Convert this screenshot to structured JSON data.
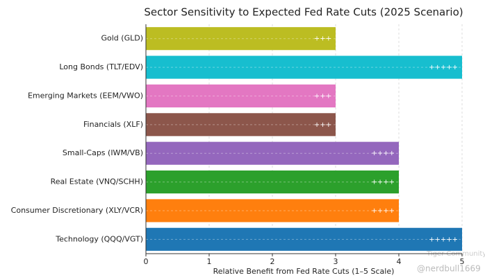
{
  "chart_data": {
    "type": "bar",
    "orientation": "horizontal",
    "title": "Sector Sensitivity to Expected Fed Rate Cuts (2025 Scenario)",
    "x_label": "Relative Benefit from Fed Rate Cuts (1–5 Scale)",
    "categories": [
      "Gold (GLD)",
      "Long Bonds (TLT/EDV)",
      "Emerging Markets (EEM/VWO)",
      "Financials (XLF)",
      "Small-Caps (IWM/VB)",
      "Real Estate (VNQ/SCHH)",
      "Consumer Discretionary (XLY/VCR)",
      "Technology (QQQ/VGT)"
    ],
    "values": [
      3,
      5,
      3,
      3,
      4,
      4,
      4,
      5
    ],
    "value_labels": [
      "+++",
      "+++++",
      "+++",
      "+++",
      "++++",
      "++++",
      "++++",
      "+++++"
    ],
    "colors": [
      "#bcbd22",
      "#17becf",
      "#e377c2",
      "#8c564b",
      "#9467bd",
      "#2ca02c",
      "#ff7f0e",
      "#1f77b4"
    ],
    "xlim": [
      0,
      5
    ],
    "xticks": [
      0,
      1,
      2,
      3,
      4,
      5
    ],
    "grid": true
  },
  "watermark": {
    "brand": "Tiger Community",
    "handle": "@nerdbull1669"
  }
}
